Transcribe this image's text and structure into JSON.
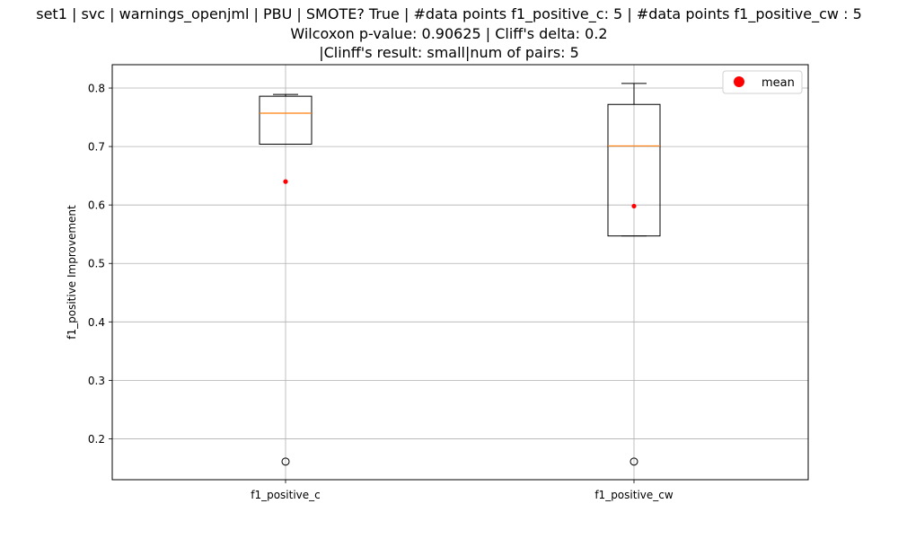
{
  "chart_data": {
    "type": "box",
    "title_lines": [
      "set1 | svc | warnings_openjml | PBU | SMOTE? True | #data points f1_positive_c: 5 | #data points f1_positive_cw : 5",
      "Wilcoxon p-value: 0.90625 | Cliff's delta: 0.2",
      "|Clinff's result: small|num of pairs: 5"
    ],
    "ylabel": "f1_positive Improvement",
    "xlabel": "",
    "ylim": [
      0.13,
      0.84
    ],
    "yticks": [
      0.2,
      0.3,
      0.4,
      0.5,
      0.6,
      0.7,
      0.8
    ],
    "ytick_labels": [
      "0.2",
      "0.3",
      "0.4",
      "0.5",
      "0.6",
      "0.7",
      "0.8"
    ],
    "grid": true,
    "legend": {
      "placement": "top-right",
      "entries": [
        {
          "label": "mean",
          "color": "#ff0000",
          "marker": "circle"
        }
      ]
    },
    "categories": [
      "f1_positive_c",
      "f1_positive_cw"
    ],
    "boxes": [
      {
        "name": "f1_positive_c",
        "whisker_low": 0.704,
        "q1": 0.704,
        "median": 0.757,
        "q3": 0.786,
        "whisker_high": 0.789,
        "mean": 0.64,
        "outliers": [
          0.161
        ]
      },
      {
        "name": "f1_positive_cw",
        "whisker_low": 0.547,
        "q1": 0.547,
        "median": 0.701,
        "q3": 0.772,
        "whisker_high": 0.808,
        "mean": 0.598,
        "outliers": [
          0.161
        ]
      }
    ],
    "colors": {
      "box": "#000000",
      "median": "#ff7f0e",
      "mean": "#ff0000",
      "grid": "#b0b0b0",
      "outlier": "#000000"
    }
  }
}
